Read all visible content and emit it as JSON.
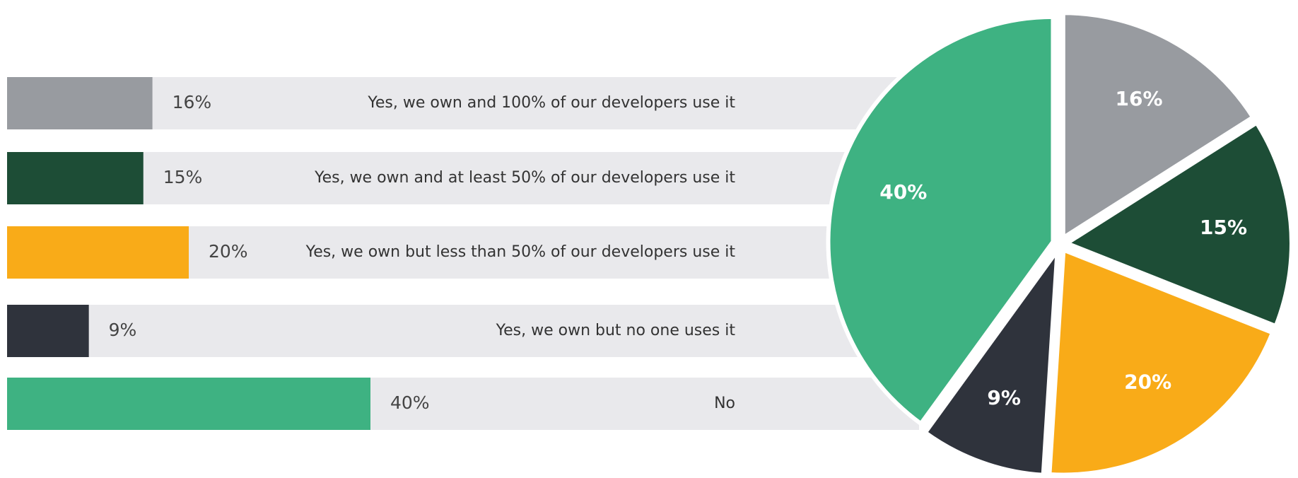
{
  "chart_data": {
    "type": "bar-pie",
    "categories": [
      "Yes, we own and 100% of our developers use it",
      "Yes, we own and at least 50% of our developers use it",
      "Yes, we own but less than 50% of our developers use it",
      "Yes, we own but no one uses it",
      "No"
    ],
    "values": [
      16,
      15,
      20,
      9,
      40
    ],
    "value_labels": [
      "16%",
      "15%",
      "20%",
      "9%",
      "40%"
    ],
    "colors": [
      "#989ba0",
      "#1d4d36",
      "#f9ab18",
      "#2f333c",
      "#3eb282"
    ]
  }
}
